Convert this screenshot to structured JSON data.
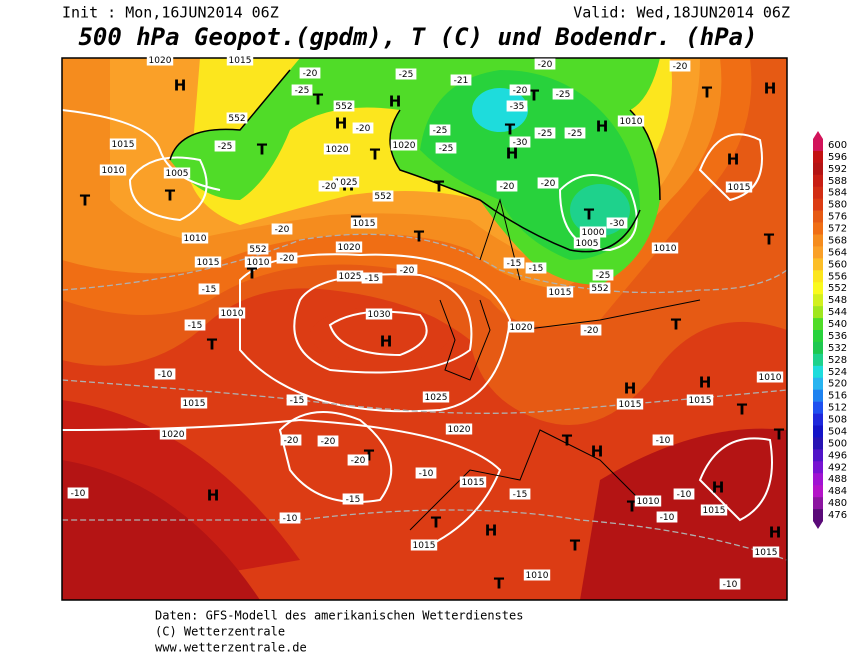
{
  "header": {
    "init": "Init : Mon,16JUN2014 06Z",
    "valid": "Valid: Wed,18JUN2014 06Z",
    "title": "500 hPa Geopot.(gpdm), T (C) und Bodendr. (hPa)"
  },
  "legend": {
    "levels": [
      600,
      596,
      592,
      588,
      584,
      580,
      576,
      572,
      568,
      564,
      560,
      556,
      552,
      548,
      544,
      540,
      536,
      532,
      528,
      524,
      520,
      516,
      512,
      508,
      504,
      500,
      496,
      492,
      488,
      484,
      480,
      476
    ],
    "colors": [
      "#d2145a",
      "#c31212",
      "#b41414",
      "#c81e14",
      "#d22d14",
      "#dc3c14",
      "#e65a14",
      "#f06e14",
      "#f58c1e",
      "#faa028",
      "#fcbe28",
      "#fce61e",
      "#fafa1e",
      "#d2f01e",
      "#a0e61e",
      "#50dc28",
      "#28d23c",
      "#1ec850",
      "#1ed28c",
      "#1edcdc",
      "#28b4f0",
      "#1e82f0",
      "#1e50f0",
      "#1e28dc",
      "#1414c8",
      "#2814b4",
      "#5014c8",
      "#7814d2",
      "#a014d2",
      "#b414c8",
      "#8c14a0",
      "#5a0a78"
    ]
  },
  "map_labels": [
    "H",
    "T",
    "H",
    "H",
    "T",
    "H",
    "T",
    "T",
    "T",
    "T",
    "H",
    "T",
    "H",
    "T",
    "T",
    "H",
    "H",
    "T",
    "T",
    "T",
    "T",
    "T",
    "H",
    "T",
    "H",
    "T",
    "H",
    "T",
    "T",
    "T",
    "H",
    "H",
    "T",
    "H",
    "T",
    "T",
    "H",
    "H",
    "T",
    "T",
    "1015",
    "1010",
    "1005",
    "1010",
    "1015",
    "1010",
    "1010",
    "552",
    "1020",
    "1025",
    "552",
    "1015",
    "1020",
    "1025",
    "1030",
    "1025",
    "1020",
    "1015",
    "1015",
    "1020",
    "1015",
    "1010",
    "1020",
    "1015",
    "1005",
    "1000",
    "1010",
    "1010",
    "1015",
    "1010",
    "1015",
    "1015",
    "1010",
    "1015",
    "1015",
    "1020",
    "552",
    "552",
    "552",
    "1015",
    "1020",
    "-20",
    "-25",
    "-20",
    "-25",
    "-21",
    "-25",
    "-25",
    "-20",
    "-35",
    "-25",
    "-20",
    "-20",
    "-25",
    "-25",
    "-30",
    "-20",
    "-20",
    "-30",
    "-25",
    "-20",
    "-15",
    "-15",
    "-20",
    "-15",
    "-20",
    "-20",
    "-20",
    "-15",
    "-15",
    "-10",
    "-15",
    "-20",
    "-20",
    "-20",
    "-15",
    "-10",
    "-15",
    "-10",
    "-10",
    "-10",
    "-10",
    "-10",
    "-10",
    "-25"
  ],
  "footer": [
    "Daten: GFS-Modell des amerikanischen Wetterdienstes",
    "(C) Wetterzentrale",
    "www.wetterzentrale.de"
  ]
}
